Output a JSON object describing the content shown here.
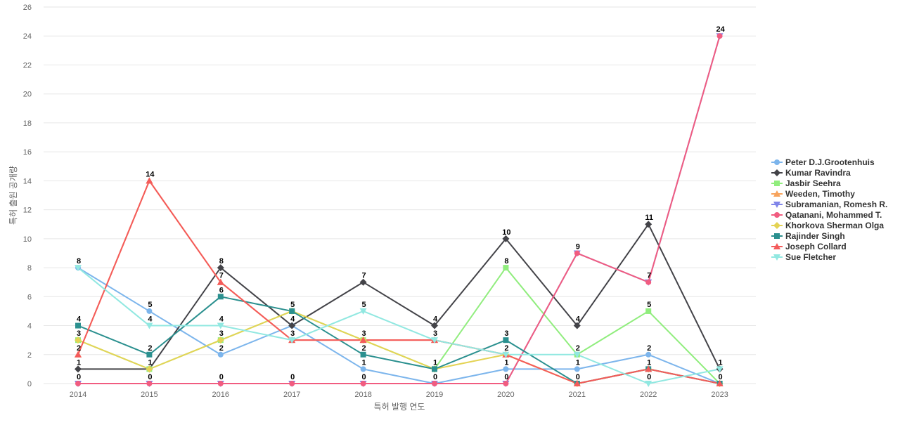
{
  "chart_data": {
    "type": "line",
    "xlabel": "특허 발행 연도",
    "ylabel": "특허 출원 공개량",
    "ylim": [
      0,
      26
    ],
    "y_ticks": [
      0,
      2,
      4,
      6,
      8,
      10,
      12,
      14,
      16,
      18,
      20,
      22,
      24,
      26
    ],
    "grid": true,
    "legend_position": "right",
    "categories": [
      "2014",
      "2015",
      "2016",
      "2017",
      "2018",
      "2019",
      "2020",
      "2021",
      "2022",
      "2023"
    ],
    "series": [
      {
        "name": "Peter D.J.Grootenhuis",
        "color": "#7cb5ec",
        "marker": "circle",
        "values": [
          8,
          5,
          2,
          4,
          1,
          0,
          1,
          1,
          2,
          0
        ]
      },
      {
        "name": "Kumar Ravindra",
        "color": "#434348",
        "marker": "diamond",
        "values": [
          1,
          1,
          8,
          4,
          7,
          4,
          10,
          4,
          11,
          1
        ]
      },
      {
        "name": "Jasbir Seehra",
        "color": "#90ed7d",
        "marker": "square",
        "values": [
          3,
          1,
          3,
          5,
          3,
          1,
          8,
          2,
          5,
          0
        ]
      },
      {
        "name": "Weeden, Timothy",
        "color": "#f7a35c",
        "marker": "triangle",
        "values": [
          2,
          14,
          7,
          3,
          3,
          3,
          2,
          0,
          1,
          0
        ]
      },
      {
        "name": "Subramanian, Romesh R.",
        "color": "#8085e9",
        "marker": "triangle-down",
        "values": [
          0,
          0,
          0,
          0,
          0,
          0,
          0,
          9,
          7,
          24
        ]
      },
      {
        "name": "Qatanani, Mohammed T.",
        "color": "#f15c80",
        "marker": "circle",
        "values": [
          0,
          0,
          0,
          0,
          0,
          0,
          0,
          9,
          7,
          24
        ]
      },
      {
        "name": "Khorkova Sherman Olga",
        "color": "#e4d354",
        "marker": "diamond",
        "values": [
          3,
          1,
          3,
          5,
          3,
          1,
          2,
          0,
          1,
          0
        ]
      },
      {
        "name": "Rajinder Singh",
        "color": "#2b908f",
        "marker": "square",
        "values": [
          4,
          2,
          6,
          5,
          2,
          1,
          3,
          0,
          1,
          0
        ]
      },
      {
        "name": "Joseph Collard",
        "color": "#f45b5b",
        "marker": "triangle",
        "values": [
          2,
          14,
          7,
          3,
          3,
          3,
          2,
          0,
          1,
          0
        ]
      },
      {
        "name": "Sue Fletcher",
        "color": "#91e8e1",
        "marker": "triangle-down",
        "values": [
          8,
          4,
          4,
          3,
          5,
          3,
          2,
          2,
          0,
          1
        ]
      }
    ],
    "data_labels": [
      {
        "x": "2014",
        "labels": [
          "8",
          "4",
          "3",
          "2",
          "1",
          "0"
        ]
      },
      {
        "x": "2015",
        "labels": [
          "14",
          "5",
          "4",
          "2",
          "1",
          "0"
        ]
      },
      {
        "x": "2016",
        "labels": [
          "8",
          "7",
          "6",
          "4",
          "3",
          "2",
          "0"
        ]
      },
      {
        "x": "2017",
        "labels": [
          "5",
          "4",
          "3",
          "0"
        ]
      },
      {
        "x": "2018",
        "labels": [
          "7",
          "5",
          "3",
          "2",
          "1",
          "0"
        ]
      },
      {
        "x": "2019",
        "labels": [
          "4",
          "3",
          "1",
          "0"
        ]
      },
      {
        "x": "2020",
        "labels": [
          "10",
          "8",
          "3",
          "2",
          "1",
          "0"
        ]
      },
      {
        "x": "2021",
        "labels": [
          "9",
          "4",
          "2",
          "1",
          "0"
        ]
      },
      {
        "x": "2022",
        "labels": [
          "11",
          "7",
          "5",
          "2",
          "1",
          "0"
        ]
      },
      {
        "x": "2023",
        "labels": [
          "24",
          "1",
          "0"
        ]
      }
    ]
  }
}
